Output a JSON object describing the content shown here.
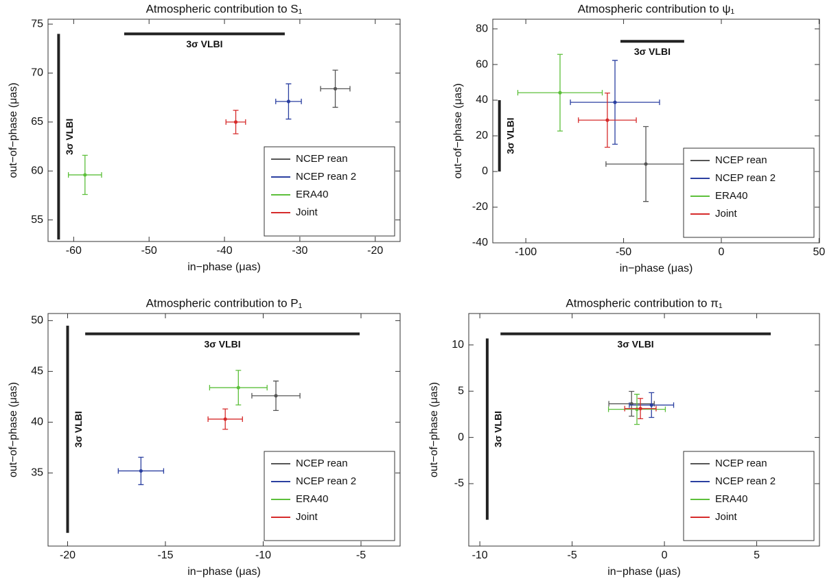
{
  "chart_data": [
    {
      "type": "errorbar",
      "title": "Atmospheric contribution to S₁",
      "x_label": "in−phase (μas)",
      "y_label": "out−of−phase (μas)",
      "xlim": [
        -63.4,
        -16.7
      ],
      "xticks": [
        -60,
        -50,
        -40,
        -30,
        -20
      ],
      "ylim": [
        52.8,
        75.5
      ],
      "yticks": [
        55,
        60,
        65,
        70,
        75
      ],
      "legend": "lower right",
      "series": [
        {
          "name": "NCEP rean",
          "color": "#555555",
          "x": [
            -25.3
          ],
          "values": [
            68.4
          ],
          "xerr": [
            1.95
          ],
          "yerr": [
            1.9
          ]
        },
        {
          "name": "NCEP rean 2",
          "color": "#2a3fa0",
          "x": [
            -31.5
          ],
          "values": [
            67.1
          ],
          "xerr": [
            1.7
          ],
          "yerr": [
            1.8
          ]
        },
        {
          "name": "ERA40",
          "color": "#5cbf3a",
          "x": [
            -58.5
          ],
          "values": [
            59.6
          ],
          "xerr": [
            2.2
          ],
          "yerr": [
            2.0
          ]
        },
        {
          "name": "Joint",
          "color": "#d62a2a",
          "x": [
            -38.5
          ],
          "values": [
            65.0
          ],
          "xerr": [
            1.3
          ],
          "yerr": [
            1.2
          ]
        }
      ],
      "vlbi": [
        {
          "label": "3σ VLBI",
          "x": [
            -53.3,
            -32.0
          ],
          "y": [
            74.0,
            74.0
          ]
        },
        {
          "label": "3σ VLBI",
          "x": [
            -62.0,
            -62.0
          ],
          "y": [
            53.0,
            74.0
          ]
        }
      ]
    },
    {
      "type": "errorbar",
      "title": "Atmospheric contribution to ψ₁",
      "x_label": "in−phase (μas)",
      "y_label": "out−of−phase (μas)",
      "xlim": [
        -116.9,
        50.2
      ],
      "xticks": [
        -100,
        -50,
        0,
        50
      ],
      "ylim": [
        -40,
        85.4
      ],
      "yticks": [
        -40,
        -20,
        0,
        20,
        40,
        60,
        80
      ],
      "legend": "lower right",
      "series": [
        {
          "name": "NCEP rean",
          "color": "#555555",
          "x": [
            -38.6
          ],
          "values": [
            4.2
          ],
          "xerr": [
            20.4
          ],
          "yerr": [
            21.0
          ]
        },
        {
          "name": "NCEP rean 2",
          "color": "#2a3fa0",
          "x": [
            -54.4
          ],
          "values": [
            38.8
          ],
          "xerr": [
            22.8
          ],
          "yerr": [
            23.5
          ]
        },
        {
          "name": "ERA40",
          "color": "#5cbf3a",
          "x": [
            -82.5
          ],
          "values": [
            44.2
          ],
          "xerr": [
            21.6
          ],
          "yerr": [
            21.5
          ]
        },
        {
          "name": "Joint",
          "color": "#d62a2a",
          "x": [
            -58.3
          ],
          "values": [
            28.8
          ],
          "xerr": [
            14.8
          ],
          "yerr": [
            15.2
          ]
        }
      ],
      "vlbi": [
        {
          "label": "3σ VLBI",
          "x": [
            -51.6,
            -19.0
          ],
          "y": [
            73.0,
            73.0
          ]
        },
        {
          "label": "3σ VLBI",
          "x": [
            -113.5,
            -113.5
          ],
          "y": [
            0.0,
            40.0
          ]
        }
      ]
    },
    {
      "type": "errorbar",
      "title": "Atmospheric contribution to P₁",
      "x_label": "in−phase (μas)",
      "y_label": "out−of−phase (μas)",
      "xlim": [
        -21.0,
        -3.0
      ],
      "xticks": [
        -20,
        -15,
        -10,
        -5
      ],
      "ylim": [
        27.8,
        50.7
      ],
      "yticks": [
        35,
        40,
        45,
        50
      ],
      "legend": "lower right",
      "series": [
        {
          "name": "NCEP rean",
          "color": "#555555",
          "x": [
            -9.35
          ],
          "values": [
            42.6
          ],
          "xerr": [
            1.23
          ],
          "yerr": [
            1.45
          ]
        },
        {
          "name": "NCEP rean 2",
          "color": "#2a3fa0",
          "x": [
            -16.25
          ],
          "values": [
            35.2
          ],
          "xerr": [
            1.16
          ],
          "yerr": [
            1.35
          ]
        },
        {
          "name": "ERA40",
          "color": "#5cbf3a",
          "x": [
            -11.27
          ],
          "values": [
            43.4
          ],
          "xerr": [
            1.47
          ],
          "yerr": [
            1.7
          ]
        },
        {
          "name": "Joint",
          "color": "#d62a2a",
          "x": [
            -11.94
          ],
          "values": [
            40.3
          ],
          "xerr": [
            0.88
          ],
          "yerr": [
            1.0
          ]
        }
      ],
      "vlbi": [
        {
          "label": "3σ VLBI",
          "x": [
            -19.1,
            -5.07
          ],
          "y": [
            48.7,
            48.7
          ]
        },
        {
          "label": "3σ VLBI",
          "x": [
            -20.0,
            -20.0
          ],
          "y": [
            29.1,
            49.5
          ]
        }
      ]
    },
    {
      "type": "errorbar",
      "title": "Atmospheric contribution to π₁",
      "x_label": "in−phase (μas)",
      "y_label": "out−of−phase (μas)",
      "xlim": [
        -10.6,
        8.4
      ],
      "xticks": [
        -10,
        -5,
        0,
        5
      ],
      "ylim": [
        -11.75,
        13.4
      ],
      "yticks": [
        -5,
        0,
        5,
        10
      ],
      "legend": "lower right",
      "series": [
        {
          "name": "NCEP rean",
          "color": "#555555",
          "x": [
            -1.78
          ],
          "values": [
            3.64
          ],
          "xerr": [
            1.23
          ],
          "yerr": [
            1.34
          ]
        },
        {
          "name": "NCEP rean 2",
          "color": "#2a3fa0",
          "x": [
            -0.7
          ],
          "values": [
            3.5
          ],
          "xerr": [
            1.2
          ],
          "yerr": [
            1.34
          ]
        },
        {
          "name": "ERA40",
          "color": "#5cbf3a",
          "x": [
            -1.49
          ],
          "values": [
            3.04
          ],
          "xerr": [
            1.54
          ],
          "yerr": [
            1.63
          ]
        },
        {
          "name": "Joint",
          "color": "#d62a2a",
          "x": [
            -1.3
          ],
          "values": [
            3.12
          ],
          "xerr": [
            0.85
          ],
          "yerr": [
            1.1
          ]
        }
      ],
      "vlbi": [
        {
          "label": "3σ VLBI",
          "x": [
            -8.88,
            5.76
          ],
          "y": [
            11.2,
            11.2
          ]
        },
        {
          "label": "3σ VLBI",
          "x": [
            -9.6,
            -9.6
          ],
          "y": [
            -8.9,
            10.7
          ]
        }
      ]
    }
  ]
}
